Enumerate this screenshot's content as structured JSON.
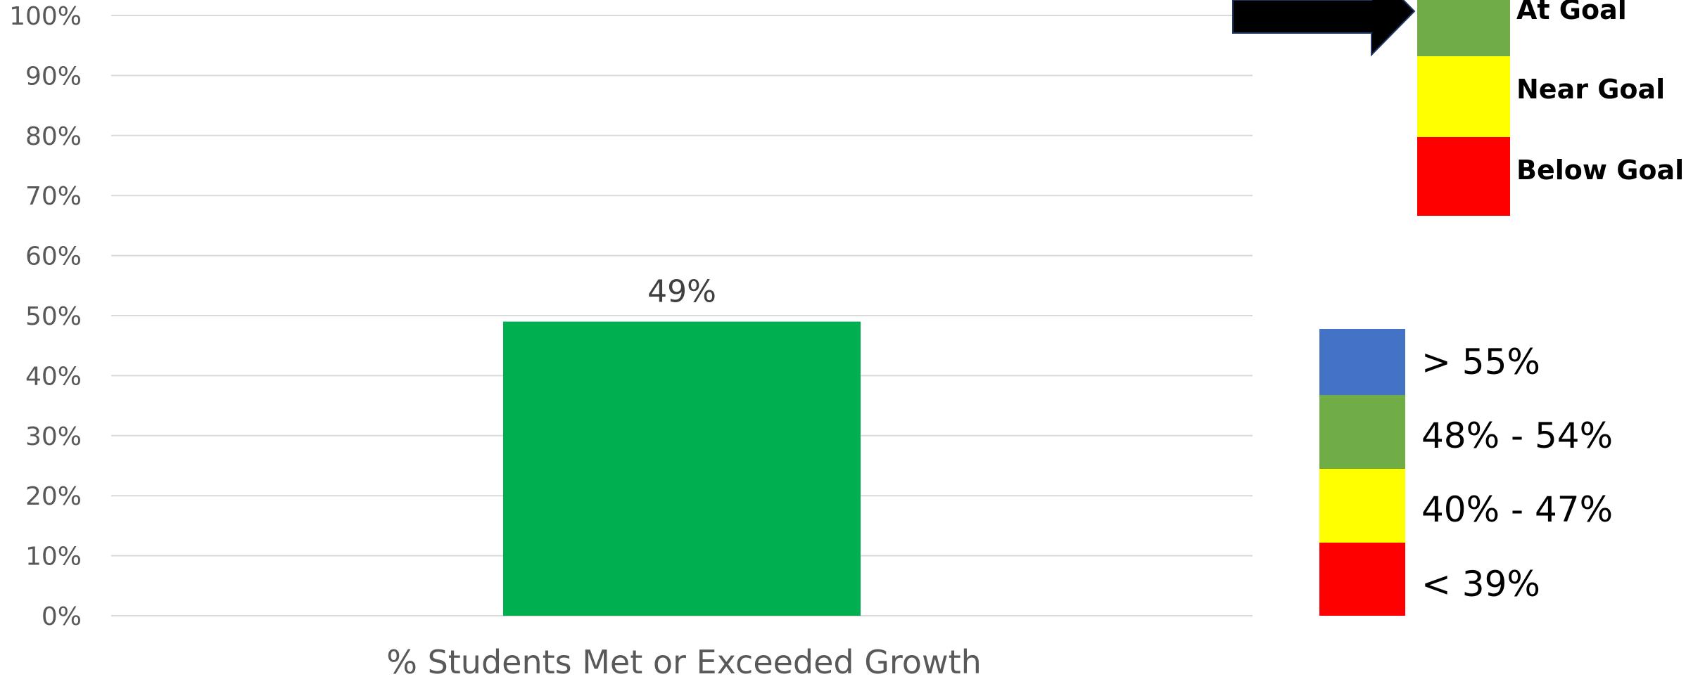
{
  "chart_data": {
    "type": "bar",
    "categories": [
      "% Students Met or Exceeded Growth"
    ],
    "values": [
      49
    ],
    "data_labels": [
      "49%"
    ],
    "bar_color": "#00b050",
    "ylim": [
      0,
      100
    ],
    "yticks": [
      "0%",
      "10%",
      "20%",
      "30%",
      "40%",
      "50%",
      "60%",
      "70%",
      "80%",
      "90%",
      "100%"
    ],
    "grid": true
  },
  "goal_legend": [
    {
      "label": "At Goal",
      "color": "#70ad47"
    },
    {
      "label": "Near Goal",
      "color": "#ffff00"
    },
    {
      "label": "Below Goal",
      "color": "#ff0000"
    }
  ],
  "range_legend": [
    {
      "label": "> 55%",
      "color": "#4472c4"
    },
    {
      "label": "48% - 54%",
      "color": "#70ad47"
    },
    {
      "label": "40% - 47%",
      "color": "#ffff00"
    },
    {
      "label": "< 39%",
      "color": "#ff0000"
    }
  ],
  "arrow_color": "#000000"
}
